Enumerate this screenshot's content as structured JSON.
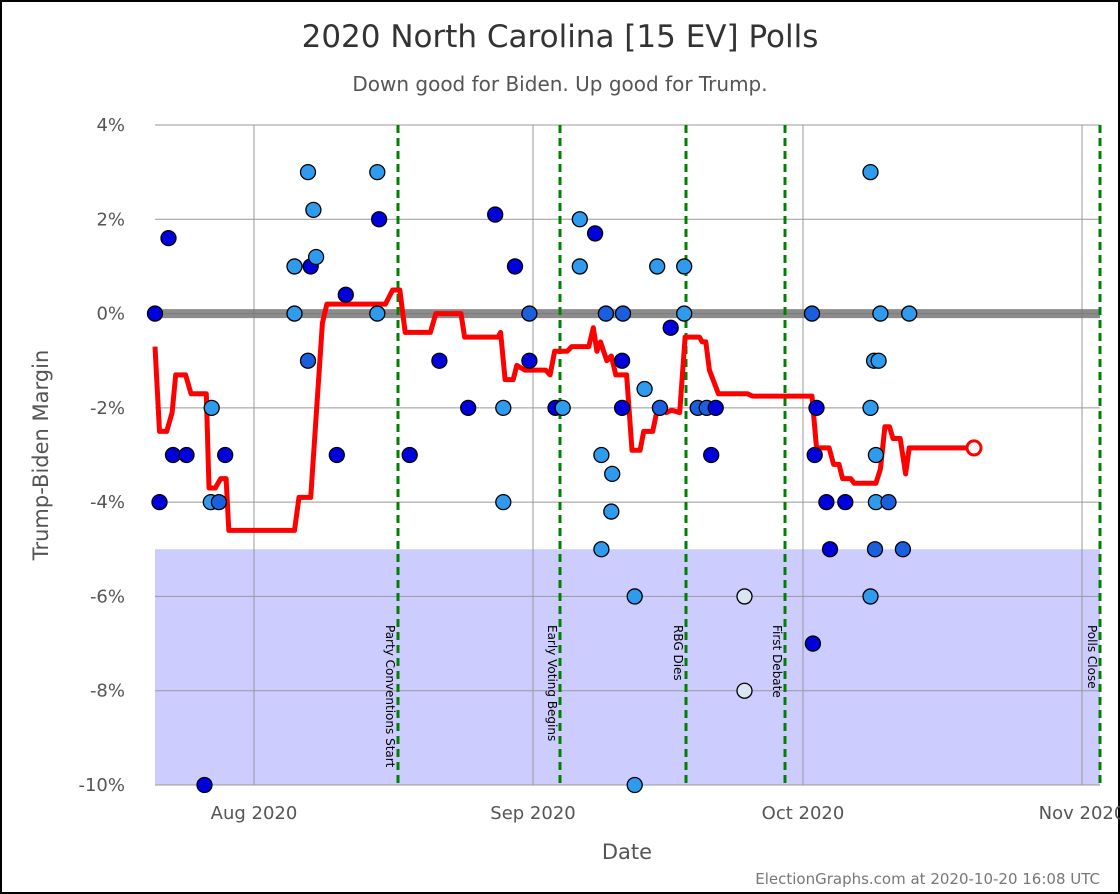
{
  "chart_data": {
    "type": "scatter",
    "title": "2020 North Carolina [15 EV] Polls",
    "subtitle": "Down good for Biden. Up good for Trump.",
    "xlabel": "Date",
    "ylabel": "Trump-Biden Margin",
    "credit": "ElectionGraphs.com at 2020-10-20 16:08 UTC",
    "xlim": [
      "2020-07-21",
      "2020-11-03"
    ],
    "ylim": [
      -10,
      4
    ],
    "grid": true,
    "x_ticks": [
      {
        "date": "2020-08-01",
        "label": "Aug 2020"
      },
      {
        "date": "2020-09-01",
        "label": "Sep 2020"
      },
      {
        "date": "2020-10-01",
        "label": "Oct 2020"
      },
      {
        "date": "2020-11-01",
        "label": "Nov 2020"
      }
    ],
    "y_ticks": [
      {
        "value": 4,
        "label": "4%"
      },
      {
        "value": 2,
        "label": "2%"
      },
      {
        "value": 0,
        "label": "0%"
      },
      {
        "value": -2,
        "label": "-2%"
      },
      {
        "value": -4,
        "label": "-4%"
      },
      {
        "value": -6,
        "label": "-6%"
      },
      {
        "value": -8,
        "label": "-8%"
      },
      {
        "value": -10,
        "label": "-10%"
      }
    ],
    "shaded_region": {
      "from": -10,
      "to": -5,
      "color": "#ccccff"
    },
    "zero_line_color": "#777777",
    "events": [
      {
        "date": "2020-08-17",
        "label": "Party Conventions Start"
      },
      {
        "date": "2020-09-04",
        "label": "Early Voting Begins"
      },
      {
        "date": "2020-09-18",
        "label": "RBG Dies"
      },
      {
        "date": "2020-09-29",
        "label": "First Debate"
      },
      {
        "date": "2020-11-03",
        "label": "Polls Close"
      }
    ],
    "event_color": "#008000",
    "colors": {
      "dark": "#0000dd",
      "mid": "#1a5fdd",
      "light": "#2e9bef",
      "pale": "#dce6f2",
      "average": "#ff0000"
    },
    "series": [
      {
        "type": "line",
        "values": [
          [
            "2020-07-21",
            -0.7
          ],
          [
            "2020-07-21.5",
            -2.5
          ],
          [
            "2020-07-22.3",
            -2.5
          ],
          [
            "2020-07-22.9",
            -2.1
          ],
          [
            "2020-07-23.3",
            -1.3
          ],
          [
            "2020-07-24.4",
            -1.3
          ],
          [
            "2020-07-25",
            -1.7
          ],
          [
            "2020-07-26.7",
            -1.7
          ],
          [
            "2020-07-27",
            -3.7
          ],
          [
            "2020-07-27.7",
            -3.7
          ],
          [
            "2020-07-28.3",
            -3.5
          ],
          [
            "2020-07-28.9",
            -3.5
          ],
          [
            "2020-07-29.2",
            -4.6
          ],
          [
            "2020-08-05.5",
            -4.6
          ],
          [
            "2020-08-06",
            -3.9
          ],
          [
            "2020-08-07.3",
            -3.9
          ],
          [
            "2020-08-08.6",
            -0.2
          ],
          [
            "2020-08-09.1",
            0.2
          ],
          [
            "2020-08-15",
            0.2
          ],
          [
            "2020-08-15.6",
            0.2
          ],
          [
            "2020-08-16.4",
            0.5
          ],
          [
            "2020-08-17.2",
            0.5
          ],
          [
            "2020-08-17.8",
            -0.4
          ],
          [
            "2020-08-20.6",
            -0.4
          ],
          [
            "2020-08-21.2",
            0.0
          ],
          [
            "2020-08-24",
            0.0
          ],
          [
            "2020-08-24.4",
            -0.5
          ],
          [
            "2020-08-28.1",
            -0.5
          ],
          [
            "2020-08-28.4",
            -0.4
          ],
          [
            "2020-08-28.9",
            -1.4
          ],
          [
            "2020-08-29.8",
            -1.4
          ],
          [
            "2020-08-30.2",
            -1.1
          ],
          [
            "2020-08-31.1",
            -1.2
          ],
          [
            "2020-09-02.4",
            -1.2
          ],
          [
            "2020-09-02.9",
            -1.3
          ],
          [
            "2020-09-03.4",
            -0.8
          ],
          [
            "2020-09-04.8",
            -0.8
          ],
          [
            "2020-09-05.3",
            -0.7
          ],
          [
            "2020-09-07.2",
            -0.7
          ],
          [
            "2020-09-07.7",
            -0.3
          ],
          [
            "2020-09-08.1",
            -0.8
          ],
          [
            "2020-09-08.5",
            -0.6
          ],
          [
            "2020-09-09.2",
            -1.0
          ],
          [
            "2020-09-09.7",
            -0.9
          ],
          [
            "2020-09-10.2",
            -1.3
          ],
          [
            "2020-09-11.4",
            -1.3
          ],
          [
            "2020-09-12",
            -2.9
          ],
          [
            "2020-09-12.9",
            -2.9
          ],
          [
            "2020-09-13.3",
            -2.5
          ],
          [
            "2020-09-14.3",
            -2.5
          ],
          [
            "2020-09-14.9",
            -1.95
          ],
          [
            "2020-09-15.8",
            -2.1
          ],
          [
            "2020-09-16.4",
            -2.05
          ],
          [
            "2020-09-17.3",
            -2.1
          ],
          [
            "2020-09-17.9",
            -0.5
          ],
          [
            "2020-09-19.5",
            -0.5
          ],
          [
            "2020-09-19.8",
            -0.6
          ],
          [
            "2020-09-20.2",
            -0.6
          ],
          [
            "2020-09-20.6",
            -1.2
          ],
          [
            "2020-09-21.2",
            -1.5
          ],
          [
            "2020-09-21.6",
            -1.7
          ],
          [
            "2020-09-24.8",
            -1.7
          ],
          [
            "2020-09-25.4",
            -1.75
          ],
          [
            "2020-10-02",
            -1.75
          ],
          [
            "2020-10-02.5",
            -2.85
          ],
          [
            "2020-10-03.9",
            -2.85
          ],
          [
            "2020-10-04.4",
            -3.2
          ],
          [
            "2020-10-05",
            -3.2
          ],
          [
            "2020-10-05.4",
            -3.5
          ],
          [
            "2020-10-06.3",
            -3.5
          ],
          [
            "2020-10-06.7",
            -3.6
          ],
          [
            "2020-10-09.1",
            -3.6
          ],
          [
            "2020-10-09.6",
            -3.3
          ],
          [
            "2020-10-10.1",
            -2.4
          ],
          [
            "2020-10-10.6",
            -2.4
          ],
          [
            "2020-10-11",
            -2.65
          ],
          [
            "2020-10-11.8",
            -2.65
          ],
          [
            "2020-10-12.4",
            -3.4
          ],
          [
            "2020-10-12.8",
            -2.85
          ],
          [
            "2020-10-20",
            -2.85
          ]
        ],
        "end_marker": {
          "date": "2020-10-20",
          "value": -2.85
        }
      },
      {
        "type": "scatter",
        "points": [
          [
            "2020-07-21",
            0,
            "dark"
          ],
          [
            "2020-07-21.5",
            -4,
            "dark"
          ],
          [
            "2020-07-22.5",
            1.6,
            "dark"
          ],
          [
            "2020-07-23",
            -3,
            "dark"
          ],
          [
            "2020-07-24.5",
            -3,
            "dark"
          ],
          [
            "2020-07-27.2",
            -4,
            "light"
          ],
          [
            "2020-07-27.3",
            -2,
            "light"
          ],
          [
            "2020-07-28.1",
            -4,
            "mid"
          ],
          [
            "2020-07-26.5",
            -10,
            "dark"
          ],
          [
            "2020-07-28.8",
            -3,
            "dark"
          ],
          [
            "2020-08-05.5",
            1,
            "light"
          ],
          [
            "2020-08-05.5",
            0,
            "light"
          ],
          [
            "2020-08-07",
            3,
            "light"
          ],
          [
            "2020-08-07.3",
            1,
            "dark"
          ],
          [
            "2020-08-07.6",
            2.2,
            "light"
          ],
          [
            "2020-08-07.9",
            1.2,
            "light"
          ],
          [
            "2020-08-07",
            -1,
            "mid"
          ],
          [
            "2020-08-10.2",
            -3,
            "dark"
          ],
          [
            "2020-08-11.2",
            0.4,
            "dark"
          ],
          [
            "2020-08-14.7",
            3,
            "light"
          ],
          [
            "2020-08-14.9",
            2,
            "dark"
          ],
          [
            "2020-08-14.7",
            0,
            "light"
          ],
          [
            "2020-08-18.3",
            -3,
            "dark"
          ],
          [
            "2020-08-21.6",
            -1,
            "dark"
          ],
          [
            "2020-08-24.8",
            -2,
            "dark"
          ],
          [
            "2020-08-27.8",
            2.1,
            "dark"
          ],
          [
            "2020-08-28.7",
            -2,
            "light"
          ],
          [
            "2020-08-28.7",
            -4,
            "light"
          ],
          [
            "2020-08-30",
            1,
            "dark"
          ],
          [
            "2020-08-31.6",
            0,
            "mid"
          ],
          [
            "2020-08-31.6",
            -1,
            "dark"
          ],
          [
            "2020-09-03.5",
            -2,
            "dark"
          ],
          [
            "2020-09-04.3",
            -2,
            "light"
          ],
          [
            "2020-09-06.2",
            2,
            "light"
          ],
          [
            "2020-09-06.2",
            1,
            "light"
          ],
          [
            "2020-09-07.9",
            1.7,
            "dark"
          ],
          [
            "2020-09-09.1",
            0,
            "mid"
          ],
          [
            "2020-09-09.8",
            -3.4,
            "light"
          ],
          [
            "2020-09-09.7",
            -4.2,
            "light"
          ],
          [
            "2020-09-08.6",
            -3,
            "light"
          ],
          [
            "2020-09-08.6",
            -5,
            "light"
          ],
          [
            "2020-09-11",
            0,
            "mid"
          ],
          [
            "2020-09-10.9",
            -1,
            "dark"
          ],
          [
            "2020-09-10.9",
            -2,
            "dark"
          ],
          [
            "2020-09-12.3",
            -6,
            "light"
          ],
          [
            "2020-09-12.3",
            -10,
            "light"
          ],
          [
            "2020-09-13.4",
            -1.6,
            "light"
          ],
          [
            "2020-09-14.8",
            1,
            "light"
          ],
          [
            "2020-09-15.1",
            -2,
            "mid"
          ],
          [
            "2020-09-16.3",
            -0.3,
            "dark"
          ],
          [
            "2020-09-17.8",
            1,
            "light"
          ],
          [
            "2020-09-17.8",
            0,
            "light"
          ],
          [
            "2020-09-19.3",
            -2,
            "mid"
          ],
          [
            "2020-09-20.3",
            -2,
            "mid"
          ],
          [
            "2020-09-21.3",
            -2,
            "dark"
          ],
          [
            "2020-09-20.8",
            -3,
            "dark"
          ],
          [
            "2020-09-24.5",
            -6,
            "pale"
          ],
          [
            "2020-09-24.5",
            -8,
            "pale"
          ],
          [
            "2020-10-02",
            0,
            "mid"
          ],
          [
            "2020-10-02.1",
            -7,
            "dark"
          ],
          [
            "2020-10-02.5",
            -2,
            "dark"
          ],
          [
            "2020-10-02.3",
            -3,
            "dark"
          ],
          [
            "2020-10-03.6",
            -4,
            "dark"
          ],
          [
            "2020-10-04",
            -5,
            "dark"
          ],
          [
            "2020-10-05.7",
            -4,
            "dark"
          ],
          [
            "2020-10-08.5",
            3,
            "light"
          ],
          [
            "2020-10-08.5",
            -2,
            "light"
          ],
          [
            "2020-10-08.5",
            -6,
            "light"
          ],
          [
            "2020-10-08.9",
            -1,
            "light"
          ],
          [
            "2020-10-09.1",
            -3,
            "light"
          ],
          [
            "2020-10-09.1",
            -4,
            "light"
          ],
          [
            "2020-10-09",
            -5,
            "mid"
          ],
          [
            "2020-10-09.4",
            -1,
            "light"
          ],
          [
            "2020-10-09.6",
            0,
            "light"
          ],
          [
            "2020-10-10.5",
            -4,
            "mid"
          ],
          [
            "2020-10-12.1",
            -5,
            "mid"
          ],
          [
            "2020-10-12.8",
            0,
            "light"
          ]
        ]
      }
    ]
  }
}
